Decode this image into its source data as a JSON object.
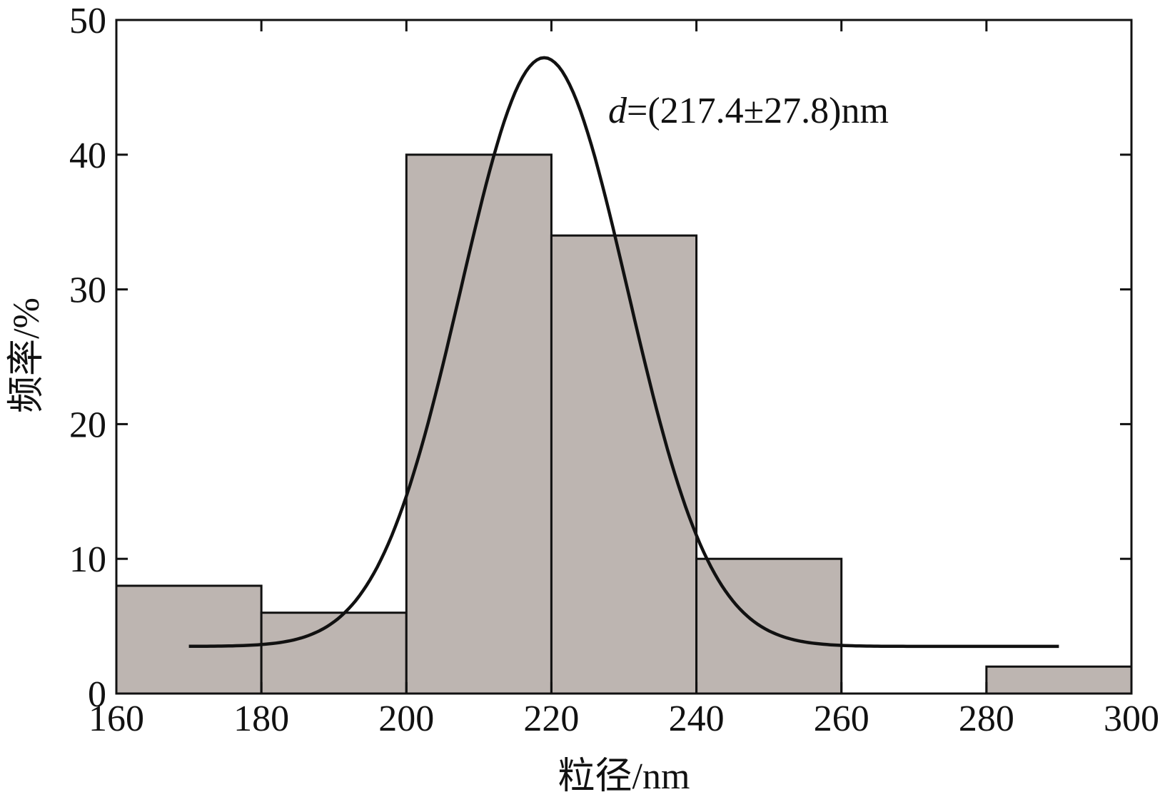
{
  "chart_data": {
    "type": "bar",
    "xlabel": "粒径/nm",
    "ylabel": "频率/%",
    "xlim": [
      160,
      300
    ],
    "ylim": [
      0,
      50
    ],
    "xticks": [
      160,
      180,
      200,
      220,
      240,
      260,
      280,
      300
    ],
    "yticks": [
      0,
      10,
      20,
      30,
      40,
      50
    ],
    "bins": [
      {
        "start": 160,
        "end": 180,
        "value": 8
      },
      {
        "start": 180,
        "end": 200,
        "value": 6
      },
      {
        "start": 200,
        "end": 220,
        "value": 40
      },
      {
        "start": 220,
        "end": 240,
        "value": 34
      },
      {
        "start": 240,
        "end": 260,
        "value": 10
      },
      {
        "start": 260,
        "end": 280,
        "value": 0
      },
      {
        "start": 280,
        "end": 300,
        "value": 2
      }
    ],
    "fit_curve": {
      "type": "gaussian",
      "x_range": [
        170,
        290
      ],
      "center": 219,
      "sigma": 11.5,
      "amplitude": 43.7,
      "baseline": 3.5
    },
    "annotation": {
      "var": "d",
      "text": "=(217.4±27.8)nm"
    },
    "grid": false,
    "colors": {
      "bar_fill": "#bdb5b1",
      "bar_stroke": "#111111",
      "curve": "#111111",
      "axis": "#111111"
    }
  }
}
